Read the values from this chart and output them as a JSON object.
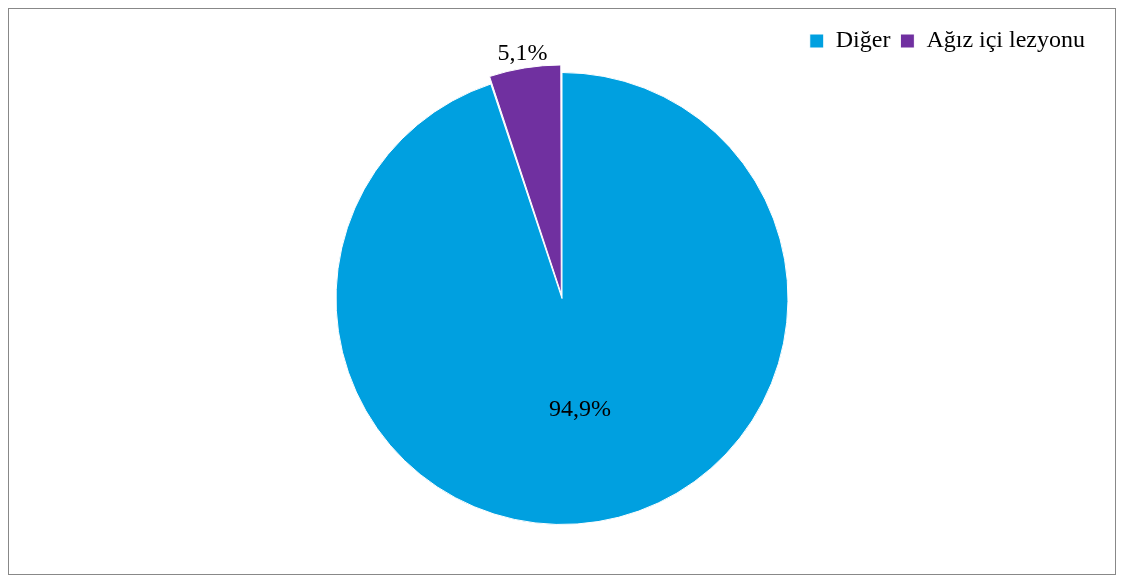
{
  "chart_data": {
    "type": "pie",
    "categories": [
      "Diğer",
      "Ağız içi lezyonu"
    ],
    "values": [
      94.9,
      5.1
    ],
    "colors": [
      "#00a0e0",
      "#7030a0"
    ],
    "value_labels": [
      "94,9%",
      "5,1%"
    ],
    "legend": "top right"
  }
}
